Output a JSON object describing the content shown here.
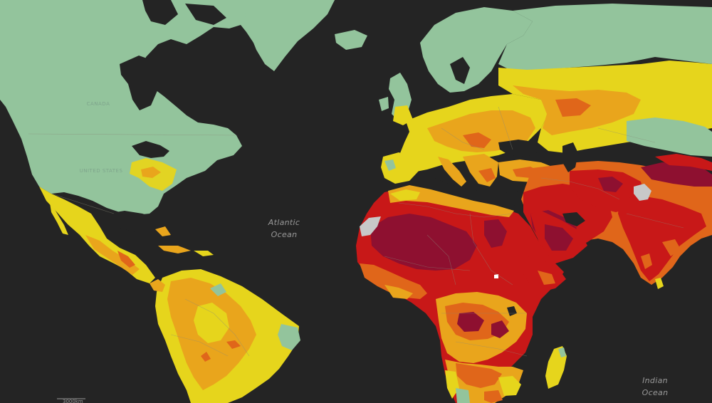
{
  "map": {
    "ocean_labels": [
      {
        "line1": "Atlantic",
        "line2": "Ocean"
      },
      {
        "line1": "Indian",
        "line2": "Ocean"
      }
    ],
    "country_labels": [
      "CANADA",
      "UNITED STATES"
    ],
    "scale_text": "3000km"
  },
  "legend_colors": {
    "ocean": "#242424",
    "low": "#93c49c",
    "moderate": "#e6d51c",
    "elevated": "#e9a51c",
    "high": "#e0661a",
    "very_high": "#c81818",
    "extreme": "#8e1030",
    "no_data": "#c8c8c8"
  }
}
